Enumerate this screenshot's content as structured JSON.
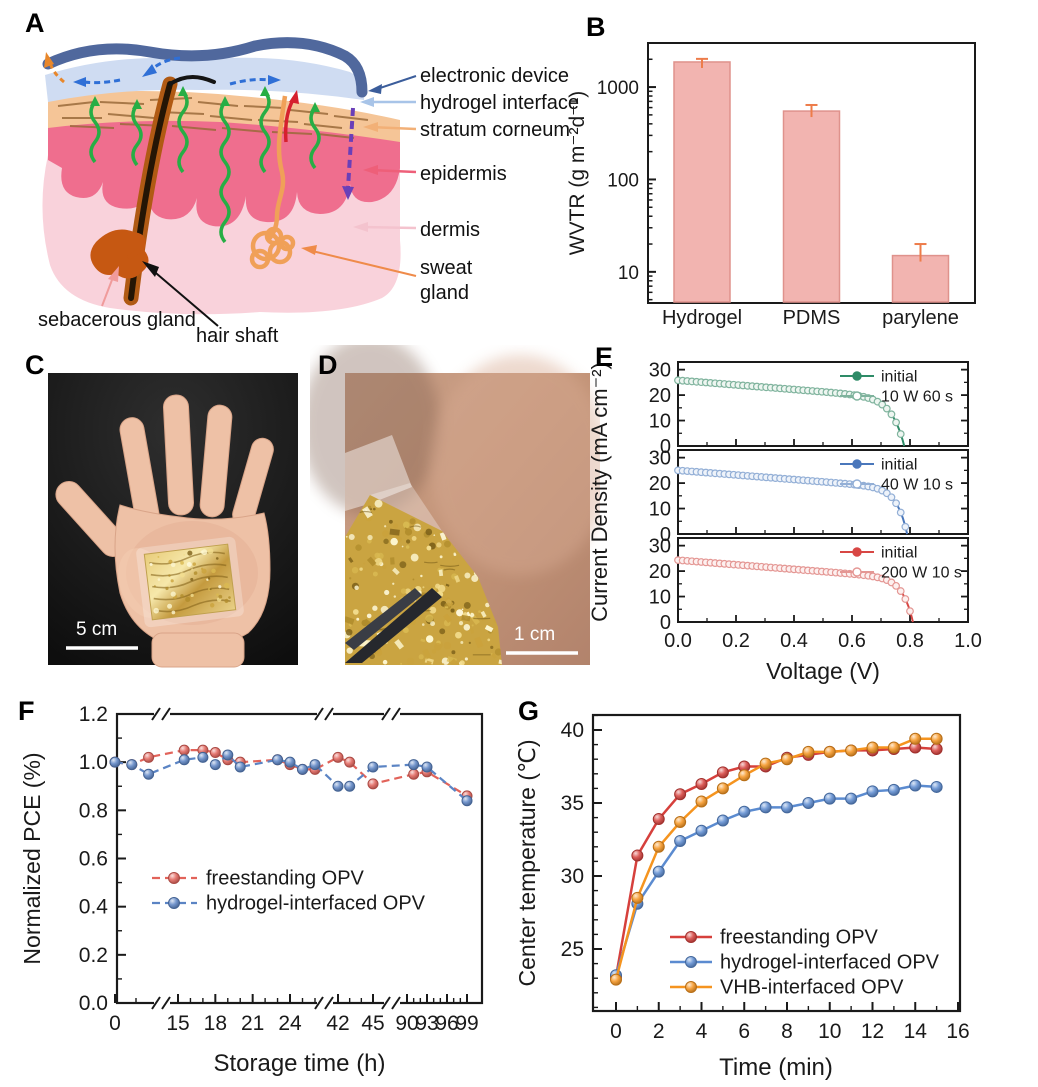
{
  "panels": {
    "a": "A",
    "b": "B",
    "c": "C",
    "d": "D",
    "e": "E",
    "f": "F",
    "g": "G"
  },
  "panel_a": {
    "electronic_device": "electronic device",
    "hydrogel_interface": "hydrogel interface",
    "stratum_corneum": "stratum corneum",
    "epidermis": "epidermis",
    "dermis": "dermis",
    "sweat_gland": "sweat gland",
    "sebacerous_gland": "sebacerous gland",
    "hair_shaft": "hair shaft"
  },
  "panel_c": {
    "scale_bar": "5 cm"
  },
  "panel_d": {
    "scale_bar": "1 cm"
  },
  "chart_data": [
    {
      "id": "B",
      "type": "bar",
      "scale": "log-y",
      "categories": [
        "Hydrogel",
        "PDMS",
        "parylene"
      ],
      "values": [
        1870,
        550,
        15
      ],
      "errors": [
        150,
        90,
        5
      ],
      "ylabel": "WVTR (g m⁻²d⁻¹)",
      "yticks": [
        10,
        100,
        1000
      ],
      "ylim": [
        4.6,
        3000
      ],
      "bar_fill": "#f2b4b0",
      "bar_edge": "#df928c",
      "error_color": "#ed7c4a"
    },
    {
      "id": "E",
      "type": "line",
      "xlabel": "Voltage (V)",
      "ylabel": "Current Density (mA cm⁻²)",
      "xlim": [
        0,
        1
      ],
      "xticks": [
        0.0,
        0.2,
        0.4,
        0.6,
        0.8,
        1.0
      ],
      "yticks": [
        0,
        10,
        20,
        30
      ],
      "subplots": [
        {
          "legend": [
            "initial",
            "10 W 60 s"
          ],
          "jsc": 25.8,
          "voc": 0.78,
          "color": "#2e8b67",
          "edge": "#7fb39d",
          "light": "#eef6f1"
        },
        {
          "legend": [
            "initial",
            "40 W 10 s"
          ],
          "jsc": 25.0,
          "voc": 0.79,
          "color": "#4a77bb",
          "edge": "#93afd6",
          "light": "#eef3fa"
        },
        {
          "legend": [
            "initial",
            "200 W 10 s"
          ],
          "jsc": 24.3,
          "voc": 0.81,
          "color": "#d84744",
          "edge": "#e49794",
          "light": "#fdf0ef"
        }
      ]
    },
    {
      "id": "F",
      "type": "line-broken-x-axis",
      "xlabel": "Storage time (h)",
      "ylabel": "Normalized PCE (%)",
      "yticks": [
        0.0,
        0.2,
        0.4,
        0.6,
        0.8,
        1.0,
        1.2
      ],
      "xticks": [
        0,
        15,
        18,
        21,
        24,
        42,
        45,
        90,
        93,
        96,
        99
      ],
      "series": [
        {
          "name": "freestanding OPV",
          "color": "#e2635a",
          "points": [
            [
              0,
              1.0
            ],
            [
              4,
              0.99
            ],
            [
              8,
              1.02
            ],
            [
              15.5,
              1.05
            ],
            [
              17,
              1.05
            ],
            [
              18,
              1.04
            ],
            [
              19,
              1.01
            ],
            [
              20,
              1.0
            ],
            [
              23,
              1.01
            ],
            [
              24,
              0.99
            ],
            [
              25,
              0.97
            ],
            [
              26,
              0.97
            ],
            [
              42,
              1.02
            ],
            [
              43,
              1.0
            ],
            [
              45,
              0.91
            ],
            [
              91,
              0.95
            ],
            [
              93,
              0.96
            ],
            [
              99,
              0.86
            ]
          ]
        },
        {
          "name": "hydrogel-interfaced OPV",
          "color": "#5b84c4",
          "points": [
            [
              0,
              1.0
            ],
            [
              4,
              0.99
            ],
            [
              8,
              0.95
            ],
            [
              15.5,
              1.01
            ],
            [
              17,
              1.02
            ],
            [
              18,
              0.99
            ],
            [
              19,
              1.03
            ],
            [
              20,
              0.98
            ],
            [
              23,
              1.01
            ],
            [
              24,
              1.0
            ],
            [
              25,
              0.97
            ],
            [
              26,
              0.99
            ],
            [
              42,
              0.9
            ],
            [
              43,
              0.9
            ],
            [
              45,
              0.98
            ],
            [
              91,
              0.99
            ],
            [
              93,
              0.98
            ],
            [
              99,
              0.84
            ]
          ]
        }
      ]
    },
    {
      "id": "G",
      "type": "line",
      "xlabel": "Time (min)",
      "ylabel": "Center temperature (℃)",
      "xticks": [
        0,
        2,
        4,
        6,
        8,
        10,
        12,
        14,
        16
      ],
      "yticks": [
        25,
        30,
        35,
        40
      ],
      "series": [
        {
          "name": "freestanding OPV",
          "color": "#d6403c",
          "points": [
            [
              0,
              23.1
            ],
            [
              1,
              31.4
            ],
            [
              2,
              33.9
            ],
            [
              3,
              35.6
            ],
            [
              4,
              36.3
            ],
            [
              5,
              37.1
            ],
            [
              6,
              37.5
            ],
            [
              7,
              37.5
            ],
            [
              8,
              38.1
            ],
            [
              9,
              38.3
            ],
            [
              10,
              38.5
            ],
            [
              11,
              38.6
            ],
            [
              12,
              38.6
            ],
            [
              13,
              38.7
            ],
            [
              14,
              38.8
            ],
            [
              15,
              38.7
            ]
          ]
        },
        {
          "name": "hydrogel-interfaced OPV",
          "color": "#5b8bd0",
          "points": [
            [
              0,
              23.2
            ],
            [
              1,
              28.1
            ],
            [
              2,
              30.3
            ],
            [
              3,
              32.4
            ],
            [
              4,
              33.1
            ],
            [
              5,
              33.8
            ],
            [
              6,
              34.4
            ],
            [
              7,
              34.7
            ],
            [
              8,
              34.7
            ],
            [
              9,
              35.0
            ],
            [
              10,
              35.3
            ],
            [
              11,
              35.3
            ],
            [
              12,
              35.8
            ],
            [
              13,
              35.9
            ],
            [
              14,
              36.2
            ],
            [
              15,
              36.1
            ]
          ]
        },
        {
          "name": "VHB-interfaced OPV",
          "color": "#f5941f",
          "points": [
            [
              0,
              22.9
            ],
            [
              1,
              28.5
            ],
            [
              2,
              32.0
            ],
            [
              3,
              33.7
            ],
            [
              4,
              35.1
            ],
            [
              5,
              36.0
            ],
            [
              6,
              36.9
            ],
            [
              7,
              37.7
            ],
            [
              8,
              38.0
            ],
            [
              9,
              38.5
            ],
            [
              10,
              38.5
            ],
            [
              11,
              38.6
            ],
            [
              12,
              38.8
            ],
            [
              13,
              38.8
            ],
            [
              14,
              39.4
            ],
            [
              15,
              39.4
            ]
          ]
        }
      ]
    }
  ]
}
